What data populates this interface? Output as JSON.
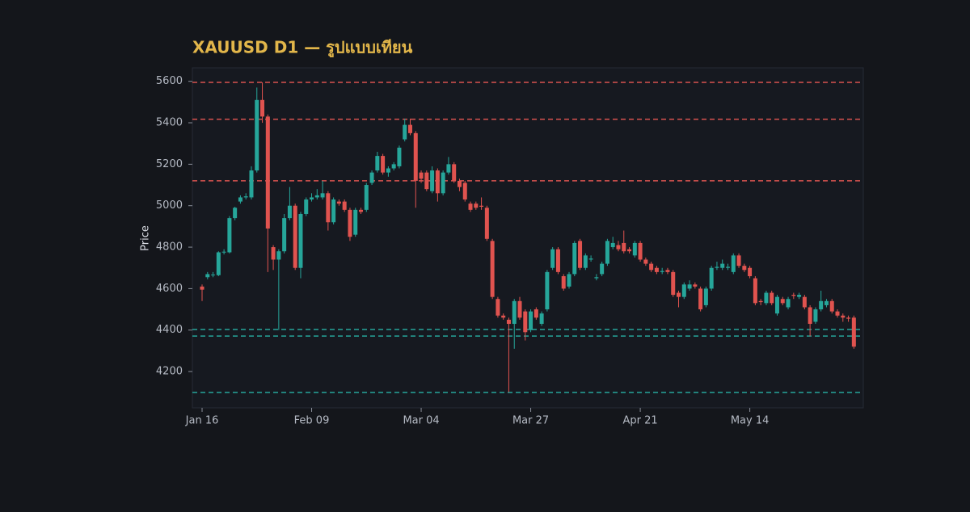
{
  "chart_data": {
    "type": "candlestick",
    "title": "XAUUSD D1 — รูปแบบเทียน",
    "y_label": "Price",
    "up_color": "#26a69a",
    "down_color": "#e0534f",
    "ylim": [
      4025,
      5665
    ],
    "yticks": [
      4200,
      4400,
      4600,
      4800,
      5000,
      5200,
      5400,
      5600
    ],
    "categories": [
      "Jan 16",
      null,
      null,
      null,
      null,
      null,
      null,
      null,
      null,
      null,
      null,
      null,
      null,
      null,
      null,
      null,
      null,
      null,
      null,
      null,
      "Feb 09",
      null,
      null,
      null,
      null,
      null,
      null,
      null,
      null,
      null,
      null,
      null,
      null,
      null,
      null,
      null,
      null,
      null,
      null,
      null,
      "Mar 04",
      null,
      null,
      null,
      null,
      null,
      null,
      null,
      null,
      null,
      null,
      null,
      null,
      null,
      null,
      null,
      null,
      null,
      null,
      null,
      "Mar 27",
      null,
      null,
      null,
      null,
      null,
      null,
      null,
      null,
      null,
      null,
      null,
      null,
      null,
      null,
      null,
      null,
      null,
      null,
      null,
      "Apr 21",
      null,
      null,
      null,
      null,
      null,
      null,
      null,
      null,
      null,
      null,
      null,
      null,
      null,
      null,
      null,
      null,
      null,
      null,
      null,
      "May 14",
      null,
      null,
      null,
      null,
      null,
      null,
      null,
      null,
      null,
      null,
      null,
      null,
      null,
      null,
      null,
      null,
      null,
      null,
      null
    ],
    "open": [
      4610,
      4655,
      4665,
      4665,
      4775,
      4775,
      4940,
      5020,
      5040,
      5040,
      5170,
      5510,
      5430,
      4800,
      4740,
      4780,
      4940,
      5000,
      4700,
      4960,
      5030,
      5040,
      5040,
      5060,
      4920,
      5020,
      5020,
      4980,
      4860,
      4980,
      4980,
      5110,
      5170,
      5240,
      5160,
      5180,
      5190,
      5320,
      5390,
      5350,
      5160,
      5160,
      5070,
      5170,
      5060,
      5160,
      5200,
      5120,
      5110,
      5010,
      5010,
      5000,
      4990,
      4830,
      4550,
      4470,
      4450,
      4430,
      4540,
      4490,
      4400,
      4500,
      4430,
      4500,
      4700,
      4790,
      4660,
      4610,
      4670,
      4830,
      4700,
      4740,
      4650,
      4670,
      4720,
      4800,
      4810,
      4820,
      4790,
      4760,
      4820,
      4740,
      4720,
      4700,
      4680,
      4690,
      4680,
      4580,
      4560,
      4600,
      4620,
      4600,
      4520,
      4600,
      4700,
      4700,
      4700,
      4680,
      4760,
      4710,
      4700,
      4650,
      4540,
      4530,
      4580,
      4480,
      4550,
      4510,
      4570,
      4560,
      4560,
      4510,
      4440,
      4500,
      4520,
      4540,
      4490,
      4470,
      4460,
      4460
    ],
    "high": [
      4620,
      4680,
      4680,
      4780,
      4790,
      4950,
      4995,
      5050,
      5060,
      5190,
      5570,
      5595,
      5440,
      4810,
      4790,
      4960,
      5090,
      5010,
      4970,
      5040,
      5060,
      5080,
      5120,
      5070,
      5040,
      5030,
      5030,
      4990,
      4990,
      4990,
      5110,
      5170,
      5260,
      5250,
      5190,
      5210,
      5290,
      5420,
      5420,
      5360,
      5170,
      5170,
      5190,
      5180,
      5170,
      5235,
      5210,
      5130,
      5120,
      5020,
      5020,
      5040,
      5000,
      4840,
      4560,
      4480,
      4460,
      4550,
      4560,
      4500,
      4500,
      4510,
      4490,
      4690,
      4800,
      4800,
      4670,
      4680,
      4830,
      4840,
      4770,
      4760,
      4670,
      4730,
      4840,
      4850,
      4830,
      4880,
      4800,
      4830,
      4830,
      4750,
      4730,
      4710,
      4700,
      4700,
      4690,
      4590,
      4630,
      4640,
      4630,
      4610,
      4610,
      4710,
      4730,
      4740,
      4720,
      4770,
      4770,
      4720,
      4710,
      4660,
      4550,
      4590,
      4590,
      4570,
      4560,
      4560,
      4580,
      4580,
      4570,
      4520,
      4510,
      4590,
      4550,
      4550,
      4500,
      4480,
      4470,
      4470
    ],
    "low": [
      4540,
      4645,
      4655,
      4660,
      4765,
      4770,
      4930,
      5010,
      5030,
      5030,
      5160,
      5400,
      4680,
      4690,
      4400,
      4770,
      4930,
      4690,
      4650,
      4950,
      5020,
      5030,
      5030,
      4880,
      4910,
      5000,
      4970,
      4830,
      4850,
      4960,
      4970,
      5100,
      5160,
      5150,
      5140,
      5170,
      5180,
      5310,
      5340,
      4990,
      5110,
      5070,
      5060,
      5020,
      5050,
      5150,
      5110,
      5070,
      5020,
      4970,
      4980,
      4980,
      4830,
      4550,
      4460,
      4450,
      4100,
      4310,
      4450,
      4350,
      4390,
      4450,
      4420,
      4490,
      4690,
      4670,
      4590,
      4600,
      4660,
      4690,
      4690,
      4730,
      4640,
      4660,
      4710,
      4790,
      4780,
      4770,
      4770,
      4750,
      4730,
      4710,
      4680,
      4670,
      4670,
      4670,
      4560,
      4510,
      4550,
      4590,
      4600,
      4490,
      4510,
      4590,
      4690,
      4690,
      4690,
      4670,
      4700,
      4680,
      4650,
      4520,
      4520,
      4520,
      4520,
      4470,
      4520,
      4500,
      4550,
      4550,
      4500,
      4370,
      4430,
      4490,
      4510,
      4480,
      4460,
      4440,
      4440,
      4310
    ],
    "close": [
      4595,
      4670,
      4668,
      4775,
      4778,
      4940,
      4990,
      5040,
      5045,
      5170,
      5510,
      5430,
      4890,
      4740,
      4780,
      4940,
      5000,
      4700,
      4960,
      5030,
      5040,
      5050,
      5060,
      4920,
      5030,
      5010,
      4980,
      4850,
      4980,
      4970,
      5100,
      5160,
      5240,
      5160,
      5180,
      5200,
      5280,
      5390,
      5350,
      5120,
      5130,
      5080,
      5170,
      5060,
      5160,
      5200,
      5120,
      5090,
      5030,
      4980,
      4990,
      4995,
      4840,
      4560,
      4470,
      4460,
      4430,
      4540,
      4460,
      4390,
      4490,
      4460,
      4480,
      4680,
      4790,
      4680,
      4600,
      4670,
      4820,
      4700,
      4760,
      4745,
      4655,
      4720,
      4830,
      4820,
      4790,
      4780,
      4780,
      4820,
      4740,
      4720,
      4690,
      4680,
      4685,
      4680,
      4570,
      4560,
      4620,
      4620,
      4610,
      4500,
      4600,
      4700,
      4705,
      4720,
      4705,
      4760,
      4710,
      4690,
      4660,
      4530,
      4535,
      4580,
      4530,
      4560,
      4530,
      4550,
      4565,
      4570,
      4510,
      4430,
      4500,
      4540,
      4540,
      4490,
      4470,
      4460,
      4455,
      4320
    ],
    "levels": [
      {
        "value": 5595,
        "color": "#d9534f"
      },
      {
        "value": 5417,
        "color": "#d9534f"
      },
      {
        "value": 5120,
        "color": "#d9534f"
      },
      {
        "value": 4403,
        "color": "#26a69a"
      },
      {
        "value": 4371,
        "color": "#26a69a"
      },
      {
        "value": 4099,
        "color": "#26a69a"
      }
    ]
  }
}
